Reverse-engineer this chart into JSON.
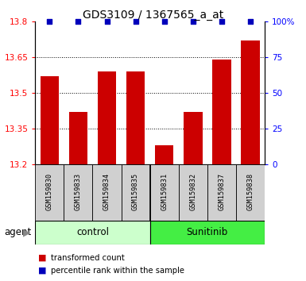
{
  "title": "GDS3109 / 1367565_a_at",
  "samples": [
    "GSM159830",
    "GSM159833",
    "GSM159834",
    "GSM159835",
    "GSM159831",
    "GSM159832",
    "GSM159837",
    "GSM159838"
  ],
  "groups": [
    "control",
    "control",
    "control",
    "control",
    "Sunitinib",
    "Sunitinib",
    "Sunitinib",
    "Sunitinib"
  ],
  "red_values": [
    13.57,
    13.42,
    13.59,
    13.59,
    13.28,
    13.42,
    13.64,
    13.72
  ],
  "blue_percentiles": [
    100,
    100,
    100,
    100,
    100,
    100,
    100,
    100
  ],
  "ylim_left": [
    13.2,
    13.8
  ],
  "ylim_right": [
    0,
    100
  ],
  "yticks_left": [
    13.2,
    13.35,
    13.5,
    13.65,
    13.8
  ],
  "yticks_right": [
    0,
    25,
    50,
    75,
    100
  ],
  "ytick_right_labels": [
    "0",
    "25",
    "50",
    "75",
    "100%"
  ],
  "bar_color": "#cc0000",
  "dot_color": "#0000bb",
  "control_color": "#ccffcc",
  "sunitinib_color": "#44ee44",
  "label_box_color": "#d0d0d0",
  "group_label_control": "control",
  "group_label_sunitinib": "Sunitinib",
  "agent_label": "agent",
  "legend_red": "transformed count",
  "legend_blue": "percentile rank within the sample",
  "bar_width": 0.65,
  "title_fontsize": 10,
  "grid_lines": [
    13.35,
    13.5,
    13.65
  ],
  "n_control": 4,
  "n_sunitinib": 4
}
